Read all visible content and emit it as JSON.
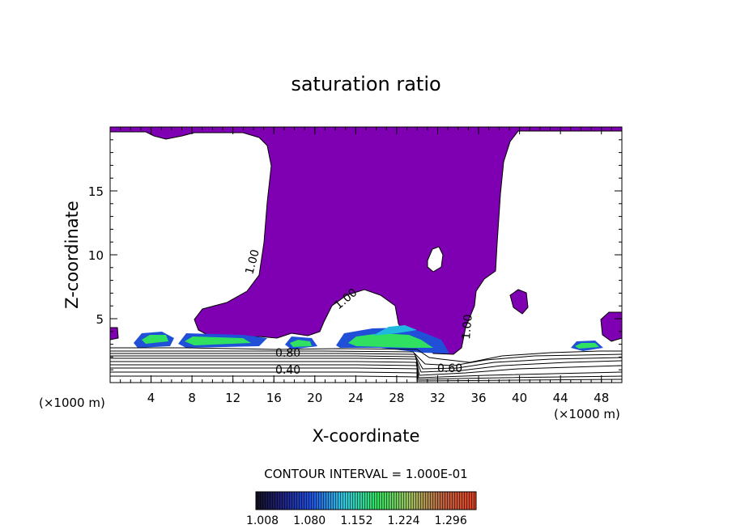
{
  "chart_data": {
    "type": "contour",
    "title": "saturation ratio",
    "xlabel": "X-coordinate",
    "ylabel": "Z-coordinate",
    "x_units": "(×1000 m)",
    "x_units_right": "(×1000 m)",
    "xlim": [
      0,
      50
    ],
    "ylim": [
      0,
      20
    ],
    "x_ticks": [
      "4",
      "8",
      "12",
      "16",
      "20",
      "24",
      "28",
      "32",
      "36",
      "40",
      "44",
      "48"
    ],
    "y_ticks": [
      "5",
      "10",
      "15"
    ],
    "contour_labels": [
      "1.00",
      "1.00",
      "1.00",
      "0.80",
      "0.40",
      "0.60"
    ],
    "contour_interval_text": "CONTOUR INTERVAL = 1.000E-01",
    "colorbar_ticks": [
      "1.008",
      "1.080",
      "1.152",
      "1.224",
      "1.296"
    ],
    "colors": {
      "supersaturated_fill": "#7f00b2",
      "band_blue": "#2050d8",
      "band_cyan": "#20b8e0",
      "band_green": "#30e060"
    }
  }
}
